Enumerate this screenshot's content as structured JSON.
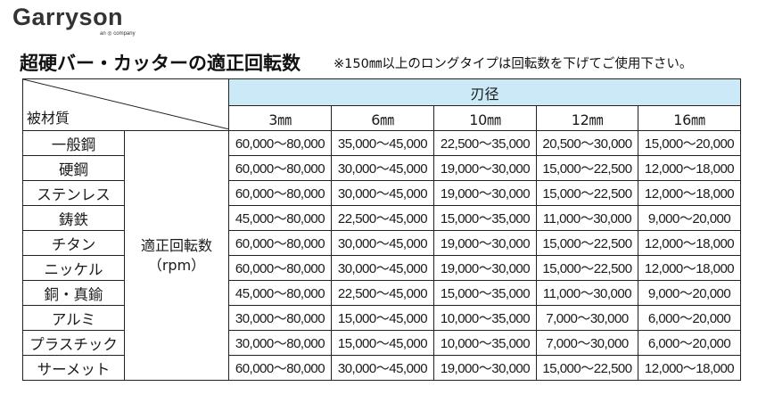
{
  "brand": {
    "name": "Garryson",
    "tagline": "an ◎ company"
  },
  "title": "超硬バー・カッターの適正回転数",
  "note": "※150㎜以上のロングタイプは回転数を下げてご使用下さい。",
  "table": {
    "corner_label": "被材質",
    "blade_header": "刃径",
    "diameters": [
      "3㎜",
      "6㎜",
      "10㎜",
      "12㎜",
      "16㎜"
    ],
    "rpm_label_line1": "適正回転数",
    "rpm_label_line2": "（rpm）",
    "rows": [
      {
        "material": "一般鋼",
        "values": [
          "60,000～80,000",
          "35,000～45,000",
          "22,500～35,000",
          "20,500～30,000",
          "15,000～20,000"
        ]
      },
      {
        "material": "硬鋼",
        "values": [
          "60,000～80,000",
          "30,000～45,000",
          "19,000～30,000",
          "15,000～22,500",
          "12,000～18,000"
        ]
      },
      {
        "material": "ステンレス",
        "values": [
          "60,000～80,000",
          "30,000～45,000",
          "19,000～30,000",
          "15,000～22,500",
          "12,000～18,000"
        ]
      },
      {
        "material": "鋳鉄",
        "values": [
          "45,000～80,000",
          "22,500～45,000",
          "15,000～35,000",
          "11,000～30,000",
          "9,000～20,000"
        ]
      },
      {
        "material": "チタン",
        "values": [
          "60,000～80,000",
          "30,000～45,000",
          "19,000～30,000",
          "15,000～22,500",
          "12,000～18,000"
        ]
      },
      {
        "material": "ニッケル",
        "values": [
          "60,000～80,000",
          "30,000～45,000",
          "19,000～30,000",
          "15,000～22,500",
          "12,000～18,000"
        ]
      },
      {
        "material": "銅・真鍮",
        "values": [
          "45,000～80,000",
          "22,500～45,000",
          "15,000～35,000",
          "11,000～30,000",
          "9,000～20,000"
        ]
      },
      {
        "material": "アルミ",
        "values": [
          "30,000～80,000",
          "15,000～45,000",
          "10,000～35,000",
          "7,000～30,000",
          "6,000～20,000"
        ]
      },
      {
        "material": "プラスチック",
        "values": [
          "30,000～80,000",
          "15,000～45,000",
          "10,000～35,000",
          "7,000～30,000",
          "6,000～20,000"
        ]
      },
      {
        "material": "サーメット",
        "values": [
          "60,000～80,000",
          "30,000～45,000",
          "19,000～30,000",
          "15,000～22,500",
          "12,000～18,000"
        ]
      }
    ]
  }
}
